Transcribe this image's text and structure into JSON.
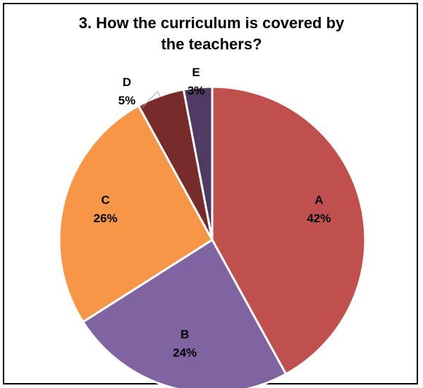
{
  "chart_data": {
    "type": "pie",
    "title_line1": "3. How the curriculum is covered by",
    "title_line2": "the teachers?",
    "slices": [
      {
        "label": "A",
        "value": 42,
        "value_text": "42%",
        "color": "#C0504D"
      },
      {
        "label": "B",
        "value": 24,
        "value_text": "24%",
        "color": "#8064A2"
      },
      {
        "label": "C",
        "value": 26,
        "value_text": "26%",
        "color": "#F79646"
      },
      {
        "label": "D",
        "value": 5,
        "value_text": "5%",
        "color": "#772C2A"
      },
      {
        "label": "E",
        "value": 3,
        "value_text": "3%",
        "color": "#4F3A63"
      }
    ],
    "legend": "none",
    "slice_border_color": "#FFFFFF"
  }
}
